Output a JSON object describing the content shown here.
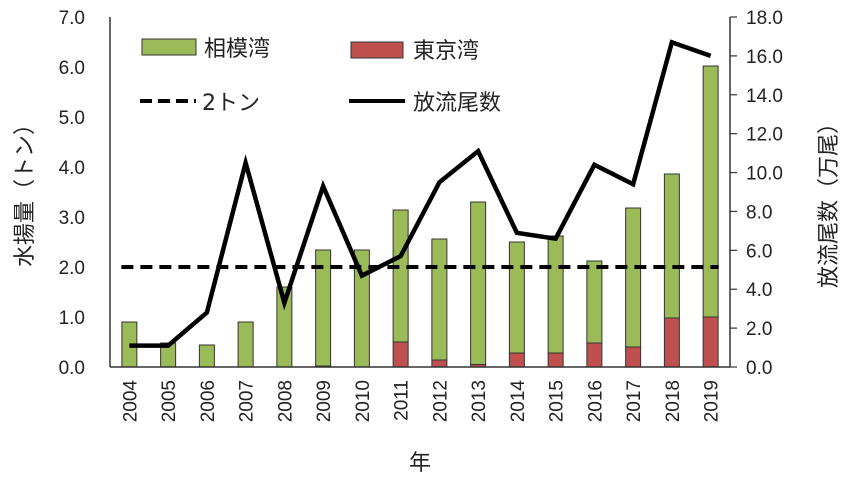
{
  "chart_data": {
    "type": "bar+line",
    "title": "",
    "categories": [
      "2004",
      "2005",
      "2006",
      "2007",
      "2008",
      "2009",
      "2010",
      "2011",
      "2012",
      "2013",
      "2014",
      "2015",
      "2016",
      "2017",
      "2018",
      "2019"
    ],
    "xlabel": "年",
    "ylabel": "水揚量（トン）",
    "y2label": "放流尾数（万尾）",
    "ylim": [
      0,
      7
    ],
    "y2lim": [
      0,
      18
    ],
    "yticks": [
      "0.0",
      "1.0",
      "2.0",
      "3.0",
      "4.0",
      "5.0",
      "6.0",
      "7.0"
    ],
    "y2ticks": [
      "0.0",
      "2.0",
      "4.0",
      "6.0",
      "8.0",
      "10.0",
      "12.0",
      "14.0",
      "16.0",
      "18.0"
    ],
    "series": [
      {
        "name": "相模湾",
        "type": "stacked-bar",
        "axis": "left",
        "color": "#9bbb59",
        "values": [
          0.9,
          0.48,
          0.44,
          0.9,
          1.6,
          2.32,
          2.34,
          2.64,
          2.42,
          3.25,
          2.22,
          2.34,
          1.64,
          2.78,
          2.88,
          5.02
        ]
      },
      {
        "name": "東京湾",
        "type": "stacked-bar",
        "axis": "left",
        "color": "#c0504d",
        "values": [
          0,
          0,
          0,
          0,
          0,
          0.02,
          0,
          0.5,
          0.14,
          0.05,
          0.28,
          0.28,
          0.48,
          0.4,
          0.98,
          1.0
        ]
      },
      {
        "name": "2トン",
        "type": "dashed-line",
        "axis": "left",
        "color": "#000000",
        "values": [
          2,
          2,
          2,
          2,
          2,
          2,
          2,
          2,
          2,
          2,
          2,
          2,
          2,
          2,
          2,
          2
        ]
      },
      {
        "name": "放流尾数",
        "type": "line",
        "axis": "right",
        "color": "#000000",
        "values": [
          1.1,
          1.1,
          2.8,
          10.5,
          3.3,
          9.3,
          4.7,
          5.7,
          9.5,
          11.1,
          6.9,
          6.6,
          10.4,
          9.4,
          16.7,
          16.0
        ]
      }
    ],
    "legend": [
      {
        "label": "相模湾",
        "kind": "bar",
        "color": "#9bbb59"
      },
      {
        "label": "東京湾",
        "kind": "bar",
        "color": "#c0504d"
      },
      {
        "label": "2トン",
        "kind": "dashed"
      },
      {
        "label": "放流尾数",
        "kind": "solid"
      }
    ],
    "legend_position": "top-left inside",
    "grid": false
  }
}
